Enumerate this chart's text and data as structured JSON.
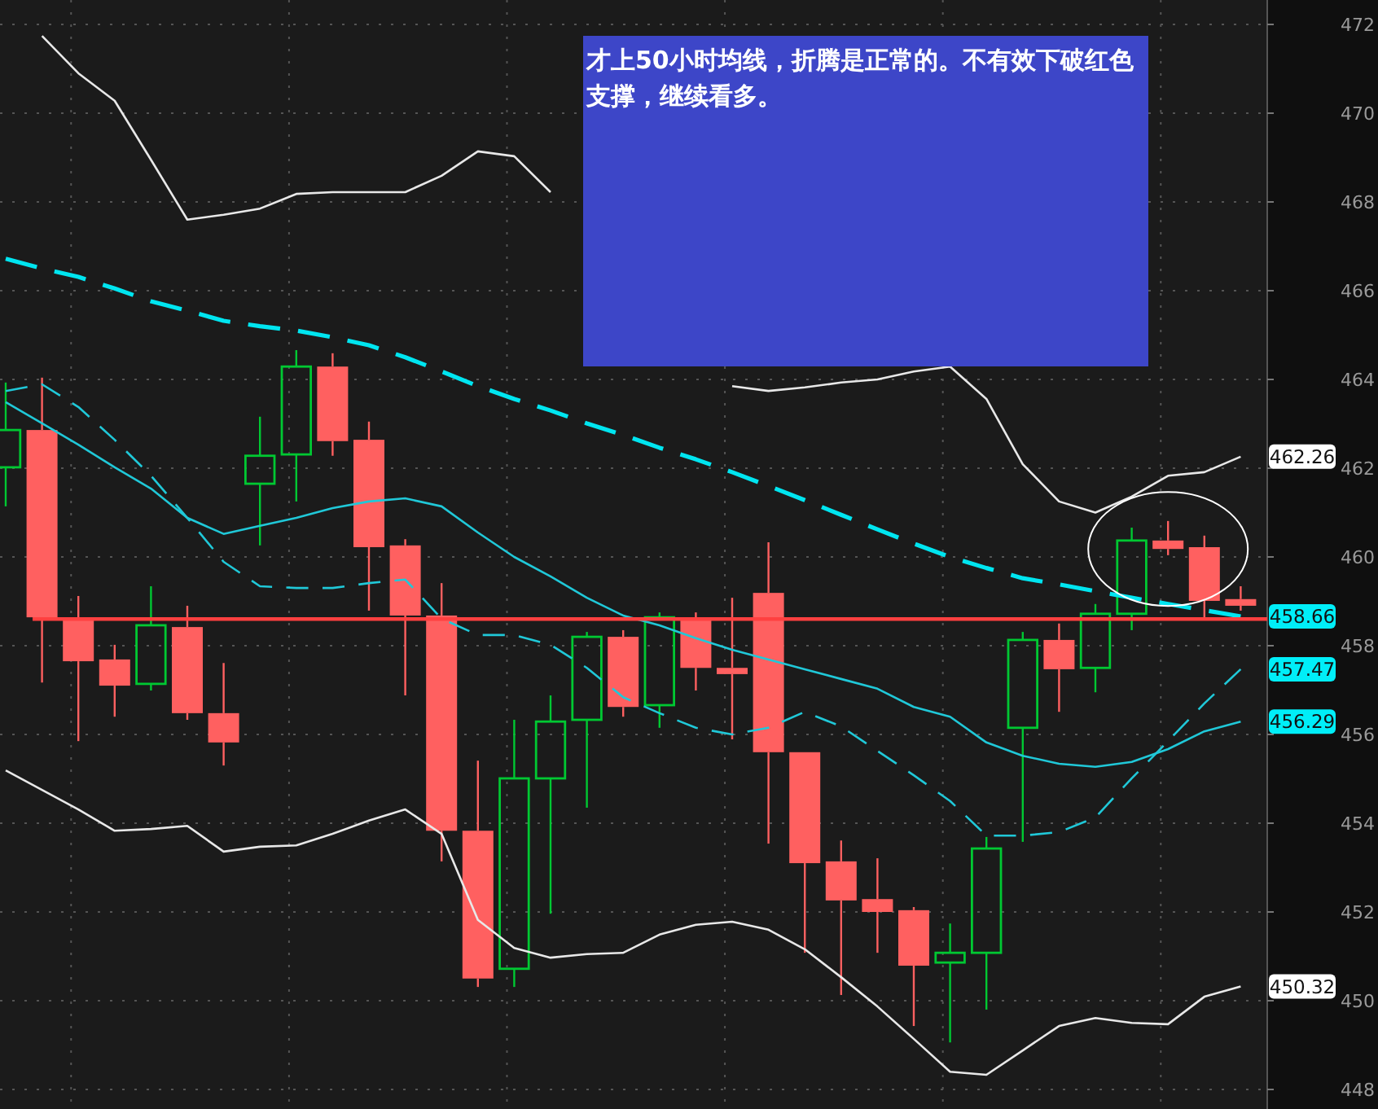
{
  "chart_data": {
    "type": "candlestick",
    "categories": [
      null,
      null,
      null,
      null,
      null,
      null,
      null,
      null,
      null,
      null,
      null,
      null,
      null,
      null,
      null,
      null,
      null,
      null,
      null,
      null,
      null,
      null,
      null,
      null,
      null,
      null,
      null,
      null,
      null,
      null,
      null,
      null,
      null,
      null,
      null
    ],
    "ohlc": [
      [
        462.02,
        463.93,
        461.14,
        462.86
      ],
      [
        462.86,
        464.04,
        457.17,
        458.64
      ],
      [
        458.64,
        459.12,
        455.85,
        457.65
      ],
      [
        457.69,
        458.02,
        456.4,
        457.1
      ],
      [
        457.14,
        459.34,
        456.99,
        458.46
      ],
      [
        458.42,
        458.9,
        456.33,
        456.48
      ],
      [
        456.48,
        457.61,
        455.3,
        455.82
      ],
      [
        461.65,
        463.16,
        460.26,
        462.28
      ],
      [
        462.31,
        464.66,
        461.25,
        464.29
      ],
      [
        464.29,
        464.59,
        462.28,
        462.61
      ],
      [
        462.64,
        463.05,
        458.79,
        460.22
      ],
      [
        460.26,
        460.4,
        456.88,
        458.68
      ],
      [
        458.68,
        459.41,
        453.14,
        453.83
      ],
      [
        453.83,
        455.41,
        450.31,
        450.5
      ],
      [
        450.72,
        456.33,
        450.31,
        455.01
      ],
      [
        455.01,
        456.88,
        451.96,
        456.29
      ],
      [
        456.33,
        458.31,
        454.35,
        458.2
      ],
      [
        458.2,
        458.35,
        456.4,
        456.62
      ],
      [
        456.66,
        458.75,
        456.15,
        458.64
      ],
      [
        458.61,
        458.75,
        456.99,
        457.5
      ],
      [
        457.5,
        459.08,
        455.89,
        457.36
      ],
      [
        459.19,
        460.33,
        453.54,
        455.6
      ],
      [
        455.6,
        455.6,
        451.08,
        453.1
      ],
      [
        453.14,
        453.61,
        450.13,
        452.26
      ],
      [
        452.29,
        453.21,
        451.08,
        452.0
      ],
      [
        452.04,
        452.11,
        449.43,
        450.79
      ],
      [
        450.86,
        451.74,
        449.06,
        451.08
      ],
      [
        451.08,
        453.69,
        449.8,
        453.43
      ],
      [
        456.15,
        458.31,
        453.58,
        458.13
      ],
      [
        458.13,
        458.5,
        456.51,
        457.47
      ],
      [
        457.5,
        458.94,
        456.95,
        458.72
      ],
      [
        458.72,
        460.66,
        458.35,
        460.37
      ],
      [
        460.37,
        460.81,
        460.04,
        460.18
      ],
      [
        460.22,
        460.48,
        458.61,
        459.01
      ],
      [
        459.05,
        459.34,
        458.79,
        458.9
      ]
    ],
    "colors": [
      "#00c832",
      "#ff6060",
      "#ff6060",
      "#ff6060",
      "#00c832",
      "#ff6060",
      "#ff6060",
      "#00c832",
      "#00c832",
      "#ff6060",
      "#ff6060",
      "#ff6060",
      "#ff6060",
      "#ff6060",
      "#00c832",
      "#00c832",
      "#00c832",
      "#ff6060",
      "#00c832",
      "#ff6060",
      "#ff6060",
      "#ff6060",
      "#ff6060",
      "#ff6060",
      "#ff6060",
      "#ff6060",
      "#00c832",
      "#00c832",
      "#00c832",
      "#ff6060",
      "#00c832",
      "#00c832",
      "#ff6060",
      "#ff6060",
      "#ff6060"
    ],
    "series": [
      {
        "type": "line",
        "color": "#e8e8e8",
        "line_style": "solid",
        "values": [
          null,
          471.74,
          470.9,
          470.28,
          468.95,
          467.6,
          467.71,
          467.85,
          468.18,
          468.22,
          468.22,
          468.22,
          468.59,
          469.14,
          469.03,
          468.22,
          null,
          null,
          null,
          null,
          463.85,
          463.74,
          463.82,
          463.93,
          464.0,
          464.18,
          464.29,
          463.56,
          462.09,
          461.25,
          461.0,
          461.36,
          461.83,
          461.91,
          462.26
        ],
        "value_labels": [
          null,
          null,
          null,
          null,
          null,
          null,
          null,
          null,
          null,
          null,
          null,
          null,
          null,
          null,
          null,
          null,
          null,
          null,
          null,
          null,
          null,
          null,
          null,
          null,
          null,
          null,
          null,
          null,
          null,
          null,
          null,
          null,
          null,
          null,
          "462.26"
        ]
      },
      {
        "type": "line",
        "color": "#e8e8e8",
        "line_style": "solid",
        "values": [
          455.19,
          454.75,
          454.31,
          453.83,
          453.87,
          453.94,
          453.36,
          453.47,
          453.5,
          453.76,
          454.06,
          454.31,
          453.76,
          451.82,
          451.19,
          450.97,
          451.05,
          451.08,
          451.49,
          451.71,
          451.78,
          451.6,
          451.16,
          450.53,
          449.87,
          449.14,
          448.4,
          448.33,
          448.88,
          449.43,
          449.61,
          449.5,
          449.47,
          450.09,
          450.32
        ],
        "value_labels": [
          null,
          null,
          null,
          null,
          null,
          null,
          null,
          null,
          null,
          null,
          null,
          null,
          null,
          null,
          null,
          null,
          null,
          null,
          null,
          null,
          null,
          null,
          null,
          null,
          null,
          null,
          null,
          null,
          null,
          null,
          null,
          null,
          null,
          null,
          "450.32"
        ]
      },
      {
        "type": "line",
        "color": "#00e5f0",
        "line_style": "dashed",
        "values": [
          466.72,
          466.5,
          466.31,
          466.05,
          465.76,
          465.55,
          465.32,
          465.2,
          465.1,
          464.95,
          464.77,
          464.5,
          464.18,
          463.85,
          463.56,
          463.3,
          463.01,
          462.75,
          462.46,
          462.2,
          461.91,
          461.6,
          461.28,
          460.95,
          460.62,
          460.3,
          460.0,
          459.75,
          459.52,
          459.38,
          459.23,
          459.08,
          458.94,
          458.8,
          458.66
        ],
        "value_labels": [
          null,
          null,
          null,
          null,
          null,
          null,
          null,
          null,
          null,
          null,
          null,
          null,
          null,
          null,
          null,
          null,
          null,
          null,
          null,
          null,
          null,
          null,
          null,
          null,
          null,
          null,
          null,
          null,
          null,
          null,
          null,
          null,
          null,
          null,
          "458.66"
        ]
      },
      {
        "type": "line",
        "color": "#20c8d8",
        "line_style": "dashed",
        "values": [
          463.74,
          463.89,
          463.38,
          462.64,
          461.83,
          460.88,
          459.89,
          459.34,
          459.3,
          459.3,
          459.41,
          459.49,
          458.61,
          458.24,
          458.24,
          458.02,
          457.5,
          456.84,
          456.48,
          456.15,
          456.0,
          456.15,
          456.51,
          456.18,
          455.63,
          455.08,
          454.5,
          453.72,
          453.72,
          453.8,
          454.13,
          455.01,
          455.85,
          456.7,
          457.47
        ],
        "value_labels": [
          null,
          null,
          null,
          null,
          null,
          null,
          null,
          null,
          null,
          null,
          null,
          null,
          null,
          null,
          null,
          null,
          null,
          null,
          null,
          null,
          null,
          null,
          null,
          null,
          null,
          null,
          null,
          null,
          null,
          null,
          null,
          null,
          null,
          null,
          "457.47"
        ]
      },
      {
        "type": "line",
        "color": "#20c8d8",
        "line_style": "solid",
        "values": [
          463.49,
          463.01,
          462.53,
          462.02,
          461.54,
          460.88,
          460.52,
          460.7,
          460.88,
          461.1,
          461.25,
          461.32,
          461.14,
          460.55,
          460.0,
          459.56,
          459.08,
          458.68,
          458.46,
          458.17,
          457.91,
          457.69,
          457.47,
          457.25,
          457.03,
          456.62,
          456.4,
          455.82,
          455.52,
          455.34,
          455.27,
          455.38,
          455.67,
          456.07,
          456.29
        ],
        "value_labels": [
          null,
          null,
          null,
          null,
          null,
          null,
          null,
          null,
          null,
          null,
          null,
          null,
          null,
          null,
          null,
          null,
          null,
          null,
          null,
          null,
          null,
          null,
          null,
          null,
          null,
          null,
          null,
          null,
          null,
          null,
          null,
          null,
          null,
          null,
          "456.29"
        ]
      }
    ],
    "ref_lines": [
      {
        "axis": "y",
        "value": 458.6,
        "color": "#ff4040",
        "line_style": "solid"
      }
    ],
    "annotations": [
      "才上50小时均线，折腾是正常的。不有效下破红色支撑，继续看多。"
    ],
    "ylim": [
      447.56,
      472.55
    ],
    "yticks": [
      448,
      450,
      452,
      454,
      456,
      458,
      460,
      462,
      464,
      466,
      468,
      470,
      472
    ],
    "grid": true
  }
}
